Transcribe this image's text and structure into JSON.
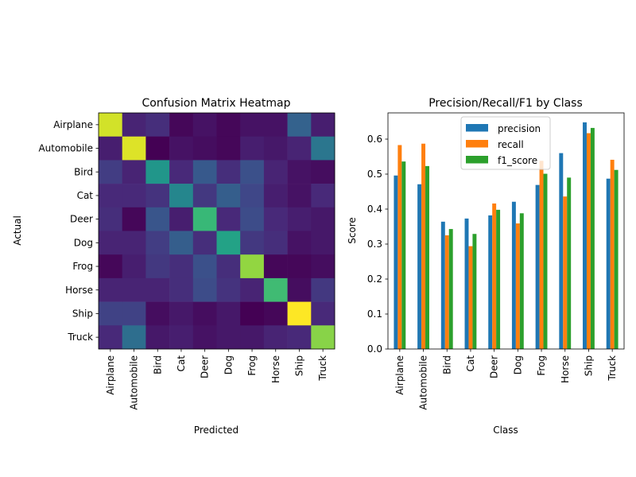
{
  "chart_data": [
    {
      "type": "heatmap",
      "title": "Confusion Matrix Heatmap",
      "xlabel": "Predicted",
      "ylabel": "Actual",
      "x_categories": [
        "Airplane",
        "Automobile",
        "Bird",
        "Cat",
        "Deer",
        "Dog",
        "Frog",
        "Horse",
        "Ship",
        "Truck"
      ],
      "y_categories": [
        "Airplane",
        "Automobile",
        "Bird",
        "Cat",
        "Deer",
        "Dog",
        "Frog",
        "Horse",
        "Ship",
        "Truck"
      ],
      "colormap": "viridis",
      "values": [
        [
          0.58,
          0.07,
          0.09,
          0.02,
          0.04,
          0.02,
          0.04,
          0.04,
          0.2,
          0.06
        ],
        [
          0.06,
          0.59,
          0.01,
          0.04,
          0.03,
          0.02,
          0.06,
          0.05,
          0.07,
          0.25
        ],
        [
          0.12,
          0.07,
          0.33,
          0.08,
          0.18,
          0.09,
          0.16,
          0.07,
          0.04,
          0.03
        ],
        [
          0.08,
          0.08,
          0.1,
          0.29,
          0.11,
          0.19,
          0.14,
          0.06,
          0.04,
          0.08
        ],
        [
          0.09,
          0.02,
          0.17,
          0.06,
          0.42,
          0.08,
          0.15,
          0.08,
          0.06,
          0.05
        ],
        [
          0.07,
          0.07,
          0.12,
          0.19,
          0.09,
          0.36,
          0.11,
          0.09,
          0.04,
          0.05
        ],
        [
          0.02,
          0.06,
          0.11,
          0.09,
          0.16,
          0.09,
          0.52,
          0.02,
          0.02,
          0.03
        ],
        [
          0.07,
          0.07,
          0.07,
          0.09,
          0.15,
          0.1,
          0.07,
          0.43,
          0.03,
          0.11
        ],
        [
          0.13,
          0.13,
          0.03,
          0.05,
          0.03,
          0.05,
          0.01,
          0.02,
          0.62,
          0.08
        ],
        [
          0.08,
          0.23,
          0.05,
          0.06,
          0.04,
          0.05,
          0.05,
          0.07,
          0.08,
          0.51
        ]
      ]
    },
    {
      "type": "bar",
      "title": "Precision/Recall/F1 by Class",
      "xlabel": "Class",
      "ylabel": "Score",
      "ylim": [
        0,
        0.675
      ],
      "yticks": [
        "0.0",
        "0.1",
        "0.2",
        "0.3",
        "0.4",
        "0.5",
        "0.6"
      ],
      "legend_position": "upper center",
      "categories": [
        "Airplane",
        "Automobile",
        "Bird",
        "Cat",
        "Deer",
        "Dog",
        "Frog",
        "Horse",
        "Ship",
        "Truck"
      ],
      "series": [
        {
          "name": "precision",
          "color": "#1f77b4",
          "values": [
            0.496,
            0.471,
            0.364,
            0.373,
            0.382,
            0.421,
            0.469,
            0.56,
            0.648,
            0.487
          ]
        },
        {
          "name": "recall",
          "color": "#ff7f0e",
          "values": [
            0.583,
            0.587,
            0.325,
            0.294,
            0.416,
            0.359,
            0.538,
            0.436,
            0.617,
            0.541
          ]
        },
        {
          "name": "f1_score",
          "color": "#2ca02c",
          "values": [
            0.536,
            0.523,
            0.343,
            0.329,
            0.398,
            0.388,
            0.501,
            0.49,
            0.632,
            0.512
          ]
        }
      ]
    }
  ]
}
